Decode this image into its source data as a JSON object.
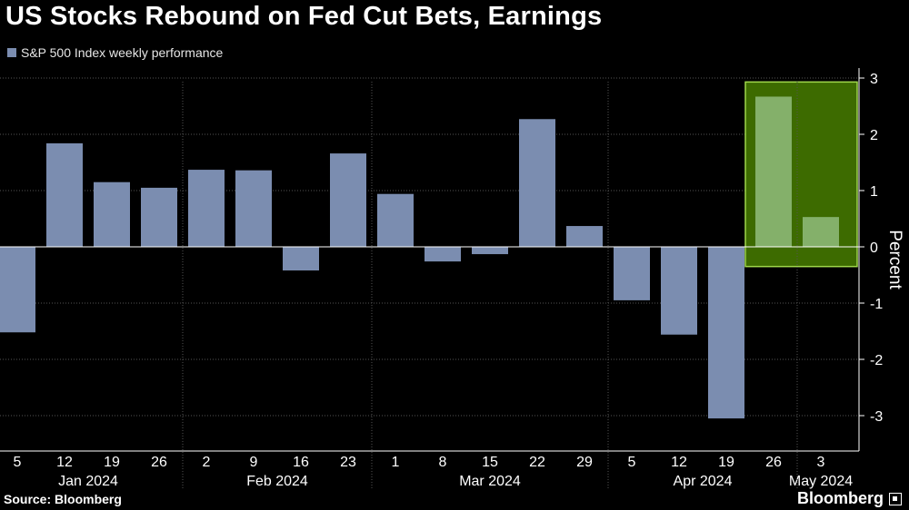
{
  "header": {
    "title": "US Stocks Rebound on Fed Cut Bets, Earnings"
  },
  "legend": {
    "label": "S&P 500 Index weekly performance"
  },
  "colors": {
    "background": "#000000",
    "bar": "#7b8db0",
    "highlight_fill": "#3d6b00",
    "highlight_border": "#9fd84a",
    "highlight_bar": "#84b06a",
    "grid": "#555555",
    "text": "#ffffff"
  },
  "chart_data": {
    "type": "bar",
    "title": "US Stocks Rebound on Fed Cut Bets, Earnings",
    "ylabel": "Percent",
    "xlabel": "",
    "ylim": [
      -3.6,
      3.2
    ],
    "yticks": [
      3,
      2,
      1,
      0,
      -1,
      -2,
      -3
    ],
    "ytick_labels": [
      "3",
      "2",
      "1",
      "0",
      "-1",
      "-2",
      "-3"
    ],
    "grid": true,
    "legend_position": "top-left",
    "categories": [
      "5",
      "12",
      "19",
      "26",
      "2",
      "9",
      "16",
      "23",
      "1",
      "8",
      "15",
      "22",
      "29",
      "5",
      "12",
      "19",
      "26",
      "3"
    ],
    "values": [
      -1.52,
      1.84,
      1.15,
      1.05,
      1.37,
      1.36,
      -0.42,
      1.66,
      0.94,
      -0.26,
      -0.13,
      2.27,
      0.37,
      -0.95,
      -1.56,
      -3.05,
      2.67,
      0.53
    ],
    "highlight_indices": [
      16,
      17
    ],
    "months": [
      {
        "label": "Jan 2024",
        "start": 0,
        "end": 3
      },
      {
        "label": "Feb 2024",
        "start": 4,
        "end": 7
      },
      {
        "label": "Mar 2024",
        "start": 8,
        "end": 12
      },
      {
        "label": "Apr 2024",
        "start": 13,
        "end": 16
      },
      {
        "label": "May 2024",
        "start": 17,
        "end": 17
      }
    ],
    "source": "Source: Bloomberg"
  },
  "footer": {
    "source": "Source: Bloomberg",
    "brand": "Bloomberg"
  }
}
